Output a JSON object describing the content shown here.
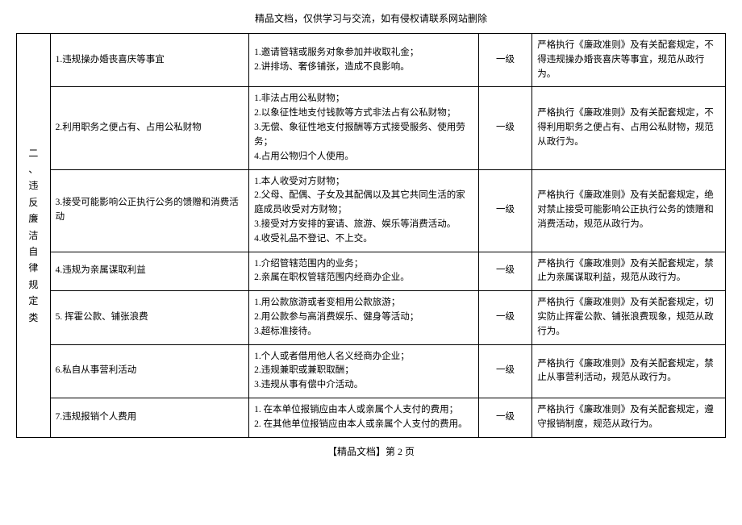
{
  "header_text": "精品文档，仅供学习与交流，如有侵权请联系网站删除",
  "footer_text": "【精品文档】第 2 页",
  "category_label": "二、违反廉洁自律规定类",
  "rows": [
    {
      "item": "1.违规操办婚丧喜庆等事宜",
      "details": "1.邀请管辖或服务对象参加并收取礼金；\n2.讲排场、奢侈铺张，造成不良影响。",
      "level": "一级",
      "measure": "严格执行《廉政准则》及有关配套规定，不得违规操办婚丧喜庆等事宜，规范从政行为。"
    },
    {
      "item": "2.利用职务之便占有、占用公私财物",
      "details": "1.非法占用公私财物；\n2.以象征性地支付钱款等方式非法占有公私财物；\n3.无偿、象征性地支付报酬等方式接受服务、使用劳务；\n4.占用公物归个人使用。",
      "level": "一级",
      "measure": "严格执行《廉政准则》及有关配套规定，不得利用职务之便占有、占用公私财物，规范从政行为。"
    },
    {
      "item": "3.接受可能影响公正执行公务的馈赠和消费活动",
      "details": "1.本人收受对方财物；\n2.父母、配偶、子女及其配偶以及其它共同生活的家庭成员收受对方财物；\n3.接受对方安排的宴请、旅游、娱乐等消费活动。\n4.收受礼品不登记、不上交。",
      "level": "一级",
      "measure": "严格执行《廉政准则》及有关配套规定，绝对禁止接受可能影响公正执行公务的馈赠和消费活动，规范从政行为。"
    },
    {
      "item": "4.违规为亲属谋取利益",
      "details": "1.介绍管辖范围内的业务；\n2.亲属在职权管辖范围内经商办企业。",
      "level": "一级",
      "measure": "严格执行《廉政准则》及有关配套规定，禁止为亲属谋取利益，规范从政行为。"
    },
    {
      "item": "5. 挥霍公款、铺张浪费",
      "details": "1.用公款旅游或者变相用公款旅游；\n2.用公款参与高消费娱乐、健身等活动；\n3.超标准接待。",
      "level": "一级",
      "measure": "严格执行《廉政准则》及有关配套规定，切实防止挥霍公款、铺张浪费现象，规范从政行为。"
    },
    {
      "item": "6.私自从事营利活动",
      "details": "1.个人或者借用他人名义经商办企业；\n2.违规兼职或兼职取酬；\n3.违规从事有偿中介活动。",
      "level": "一级",
      "measure": "严格执行《廉政准则》及有关配套规定，禁止从事营利活动，规范从政行为。"
    },
    {
      "item": "7.违规报销个人费用",
      "details": "1. 在本单位报销应由本人或亲属个人支付的费用；\n2. 在其他单位报销应由本人或亲属个人支付的费用。",
      "level": "一级",
      "measure": "严格执行《廉政准则》及有关配套规定，遵守报销制度，规范从政行为。"
    }
  ]
}
